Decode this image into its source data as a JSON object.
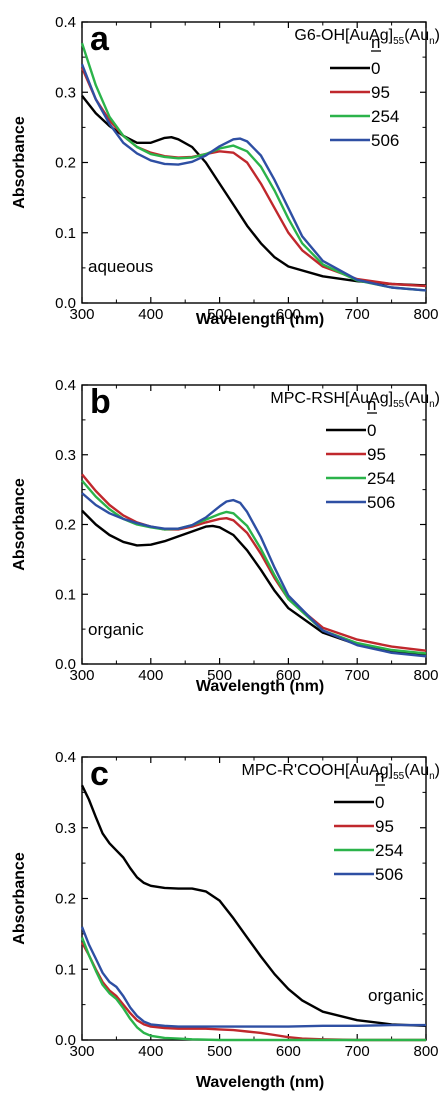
{
  "chart_data": [
    {
      "type": "line",
      "panel_label": "a",
      "title": {
        "main": "G6-OH[AuAg]",
        "sub1": "55",
        "mid": "(Au",
        "sub2": "n",
        "end": ")"
      },
      "xlabel": "Wavelength (nm)",
      "ylabel": "Absorbance",
      "xlim": [
        300,
        800
      ],
      "ylim": [
        0,
        0.4
      ],
      "xticks": [
        300,
        400,
        500,
        600,
        700,
        800
      ],
      "yticks": [
        0.0,
        0.1,
        0.2,
        0.3,
        0.4
      ],
      "ytick_labels": [
        "0.0",
        "0.1",
        "0.2",
        "0.3",
        "0.4"
      ],
      "legend_title": "n",
      "legend_position": "top-right",
      "annotation": "aqueous",
      "series": [
        {
          "name": "0",
          "color": "#000000",
          "x": [
            300,
            320,
            340,
            360,
            380,
            400,
            420,
            430,
            440,
            460,
            480,
            500,
            520,
            540,
            560,
            580,
            600,
            650,
            700,
            750,
            800
          ],
          "y": [
            0.295,
            0.27,
            0.252,
            0.238,
            0.228,
            0.228,
            0.235,
            0.236,
            0.233,
            0.222,
            0.2,
            0.17,
            0.14,
            0.11,
            0.085,
            0.065,
            0.052,
            0.038,
            0.031,
            0.027,
            0.025
          ]
        },
        {
          "name": "95",
          "color": "#c0282d",
          "x": [
            300,
            320,
            340,
            360,
            380,
            400,
            420,
            440,
            460,
            480,
            500,
            520,
            540,
            560,
            580,
            600,
            620,
            650,
            700,
            750,
            800
          ],
          "y": [
            0.335,
            0.29,
            0.26,
            0.238,
            0.222,
            0.214,
            0.209,
            0.207,
            0.208,
            0.212,
            0.216,
            0.214,
            0.2,
            0.17,
            0.135,
            0.1,
            0.075,
            0.052,
            0.034,
            0.027,
            0.024
          ]
        },
        {
          "name": "254",
          "color": "#2bb34a",
          "x": [
            300,
            320,
            340,
            360,
            380,
            400,
            420,
            440,
            460,
            480,
            500,
            520,
            540,
            560,
            580,
            600,
            620,
            650,
            700,
            750,
            800
          ],
          "y": [
            0.37,
            0.31,
            0.265,
            0.238,
            0.222,
            0.212,
            0.208,
            0.206,
            0.207,
            0.212,
            0.22,
            0.224,
            0.216,
            0.194,
            0.16,
            0.12,
            0.085,
            0.055,
            0.032,
            0.022,
            0.018
          ]
        },
        {
          "name": "506",
          "color": "#2e4fa3",
          "x": [
            300,
            320,
            340,
            360,
            380,
            400,
            420,
            440,
            460,
            480,
            500,
            520,
            530,
            540,
            560,
            580,
            600,
            620,
            650,
            700,
            750,
            800
          ],
          "y": [
            0.34,
            0.29,
            0.255,
            0.228,
            0.213,
            0.203,
            0.198,
            0.197,
            0.201,
            0.21,
            0.223,
            0.233,
            0.234,
            0.23,
            0.21,
            0.175,
            0.135,
            0.095,
            0.06,
            0.033,
            0.022,
            0.018
          ]
        }
      ]
    },
    {
      "type": "line",
      "panel_label": "b",
      "title": {
        "main": "MPC-RSH[AuAg]",
        "sub1": "55",
        "mid": "(Au",
        "sub2": "n",
        "end": ")"
      },
      "xlabel": "Wavelength (nm)",
      "ylabel": "Absorbance",
      "xlim": [
        300,
        800
      ],
      "ylim": [
        0,
        0.4
      ],
      "xticks": [
        300,
        400,
        500,
        600,
        700,
        800
      ],
      "yticks": [
        0.0,
        0.1,
        0.2,
        0.3,
        0.4
      ],
      "ytick_labels": [
        "0.0",
        "0.1",
        "0.2",
        "0.3",
        "0.4"
      ],
      "legend_title": "n",
      "legend_position": "top-right",
      "annotation": "organic",
      "series": [
        {
          "name": "0",
          "color": "#000000",
          "x": [
            300,
            320,
            340,
            360,
            380,
            400,
            420,
            440,
            460,
            480,
            490,
            500,
            520,
            540,
            560,
            580,
            600,
            650,
            700,
            750,
            800
          ],
          "y": [
            0.22,
            0.2,
            0.185,
            0.175,
            0.17,
            0.171,
            0.176,
            0.183,
            0.19,
            0.197,
            0.198,
            0.196,
            0.185,
            0.163,
            0.135,
            0.105,
            0.08,
            0.045,
            0.028,
            0.018,
            0.012
          ]
        },
        {
          "name": "95",
          "color": "#c0282d",
          "x": [
            300,
            320,
            340,
            360,
            380,
            400,
            420,
            440,
            460,
            480,
            500,
            510,
            520,
            540,
            560,
            580,
            600,
            650,
            700,
            750,
            800
          ],
          "y": [
            0.272,
            0.248,
            0.228,
            0.213,
            0.203,
            0.197,
            0.193,
            0.193,
            0.197,
            0.203,
            0.208,
            0.209,
            0.206,
            0.188,
            0.158,
            0.123,
            0.093,
            0.052,
            0.035,
            0.025,
            0.019
          ]
        },
        {
          "name": "254",
          "color": "#2bb34a",
          "x": [
            300,
            320,
            340,
            360,
            380,
            400,
            420,
            440,
            460,
            480,
            500,
            510,
            520,
            540,
            560,
            580,
            600,
            650,
            700,
            750,
            800
          ],
          "y": [
            0.263,
            0.24,
            0.222,
            0.208,
            0.2,
            0.196,
            0.193,
            0.194,
            0.199,
            0.207,
            0.215,
            0.218,
            0.216,
            0.198,
            0.165,
            0.127,
            0.093,
            0.048,
            0.03,
            0.02,
            0.015
          ]
        },
        {
          "name": "506",
          "color": "#2e4fa3",
          "x": [
            300,
            320,
            340,
            360,
            380,
            400,
            420,
            440,
            460,
            480,
            500,
            510,
            520,
            530,
            540,
            560,
            580,
            600,
            650,
            700,
            750,
            800
          ],
          "y": [
            0.245,
            0.228,
            0.216,
            0.208,
            0.202,
            0.197,
            0.194,
            0.194,
            0.199,
            0.21,
            0.226,
            0.233,
            0.235,
            0.231,
            0.218,
            0.182,
            0.138,
            0.098,
            0.048,
            0.027,
            0.016,
            0.011
          ]
        }
      ]
    },
    {
      "type": "line",
      "panel_label": "c",
      "title": {
        "main": "MPC-R'COOH[AuAg]",
        "sub1": "55",
        "mid": "(Au",
        "sub2": "n",
        "end": ")"
      },
      "xlabel": "Wavelength (nm)",
      "ylabel": "Absorbance",
      "xlim": [
        300,
        800
      ],
      "ylim": [
        0,
        0.4
      ],
      "xticks": [
        300,
        400,
        500,
        600,
        700,
        800
      ],
      "yticks": [
        0.0,
        0.1,
        0.2,
        0.3,
        0.4
      ],
      "ytick_labels": [
        "0.0",
        "0.1",
        "0.2",
        "0.3",
        "0.4"
      ],
      "legend_title": "n",
      "legend_position": "top-right",
      "annotation": "organic",
      "series": [
        {
          "name": "0",
          "color": "#000000",
          "x": [
            300,
            310,
            320,
            330,
            340,
            350,
            360,
            370,
            380,
            390,
            400,
            420,
            440,
            460,
            480,
            500,
            520,
            540,
            560,
            580,
            600,
            620,
            650,
            700,
            750,
            800
          ],
          "y": [
            0.36,
            0.34,
            0.315,
            0.292,
            0.278,
            0.268,
            0.258,
            0.243,
            0.23,
            0.222,
            0.218,
            0.215,
            0.214,
            0.214,
            0.21,
            0.197,
            0.172,
            0.145,
            0.118,
            0.093,
            0.072,
            0.056,
            0.04,
            0.028,
            0.022,
            0.02
          ]
        },
        {
          "name": "95",
          "color": "#c0282d",
          "x": [
            300,
            310,
            320,
            330,
            340,
            350,
            360,
            370,
            380,
            390,
            400,
            420,
            440,
            460,
            480,
            500,
            520,
            540,
            560,
            580,
            600,
            620,
            650,
            700,
            750,
            800
          ],
          "y": [
            0.138,
            0.12,
            0.1,
            0.082,
            0.07,
            0.062,
            0.05,
            0.038,
            0.028,
            0.022,
            0.019,
            0.017,
            0.016,
            0.016,
            0.016,
            0.015,
            0.014,
            0.012,
            0.01,
            0.007,
            0.004,
            0.002,
            0.001,
            0.0,
            0.0,
            0.0
          ]
        },
        {
          "name": "254",
          "color": "#2bb34a",
          "x": [
            300,
            310,
            320,
            330,
            340,
            350,
            360,
            370,
            380,
            390,
            400,
            420,
            440,
            460,
            500,
            550,
            600,
            650,
            700,
            750,
            800
          ],
          "y": [
            0.145,
            0.12,
            0.098,
            0.078,
            0.066,
            0.058,
            0.045,
            0.03,
            0.018,
            0.01,
            0.006,
            0.003,
            0.002,
            0.001,
            0.0,
            0.0,
            0.0,
            0.0,
            0.0,
            0.0,
            0.0
          ]
        },
        {
          "name": "506",
          "color": "#2e4fa3",
          "x": [
            300,
            310,
            320,
            330,
            340,
            350,
            360,
            370,
            380,
            390,
            400,
            420,
            440,
            460,
            500,
            550,
            600,
            650,
            700,
            750,
            800
          ],
          "y": [
            0.16,
            0.135,
            0.115,
            0.095,
            0.082,
            0.075,
            0.062,
            0.046,
            0.034,
            0.026,
            0.022,
            0.02,
            0.019,
            0.019,
            0.019,
            0.019,
            0.019,
            0.02,
            0.02,
            0.021,
            0.021
          ]
        }
      ]
    }
  ]
}
